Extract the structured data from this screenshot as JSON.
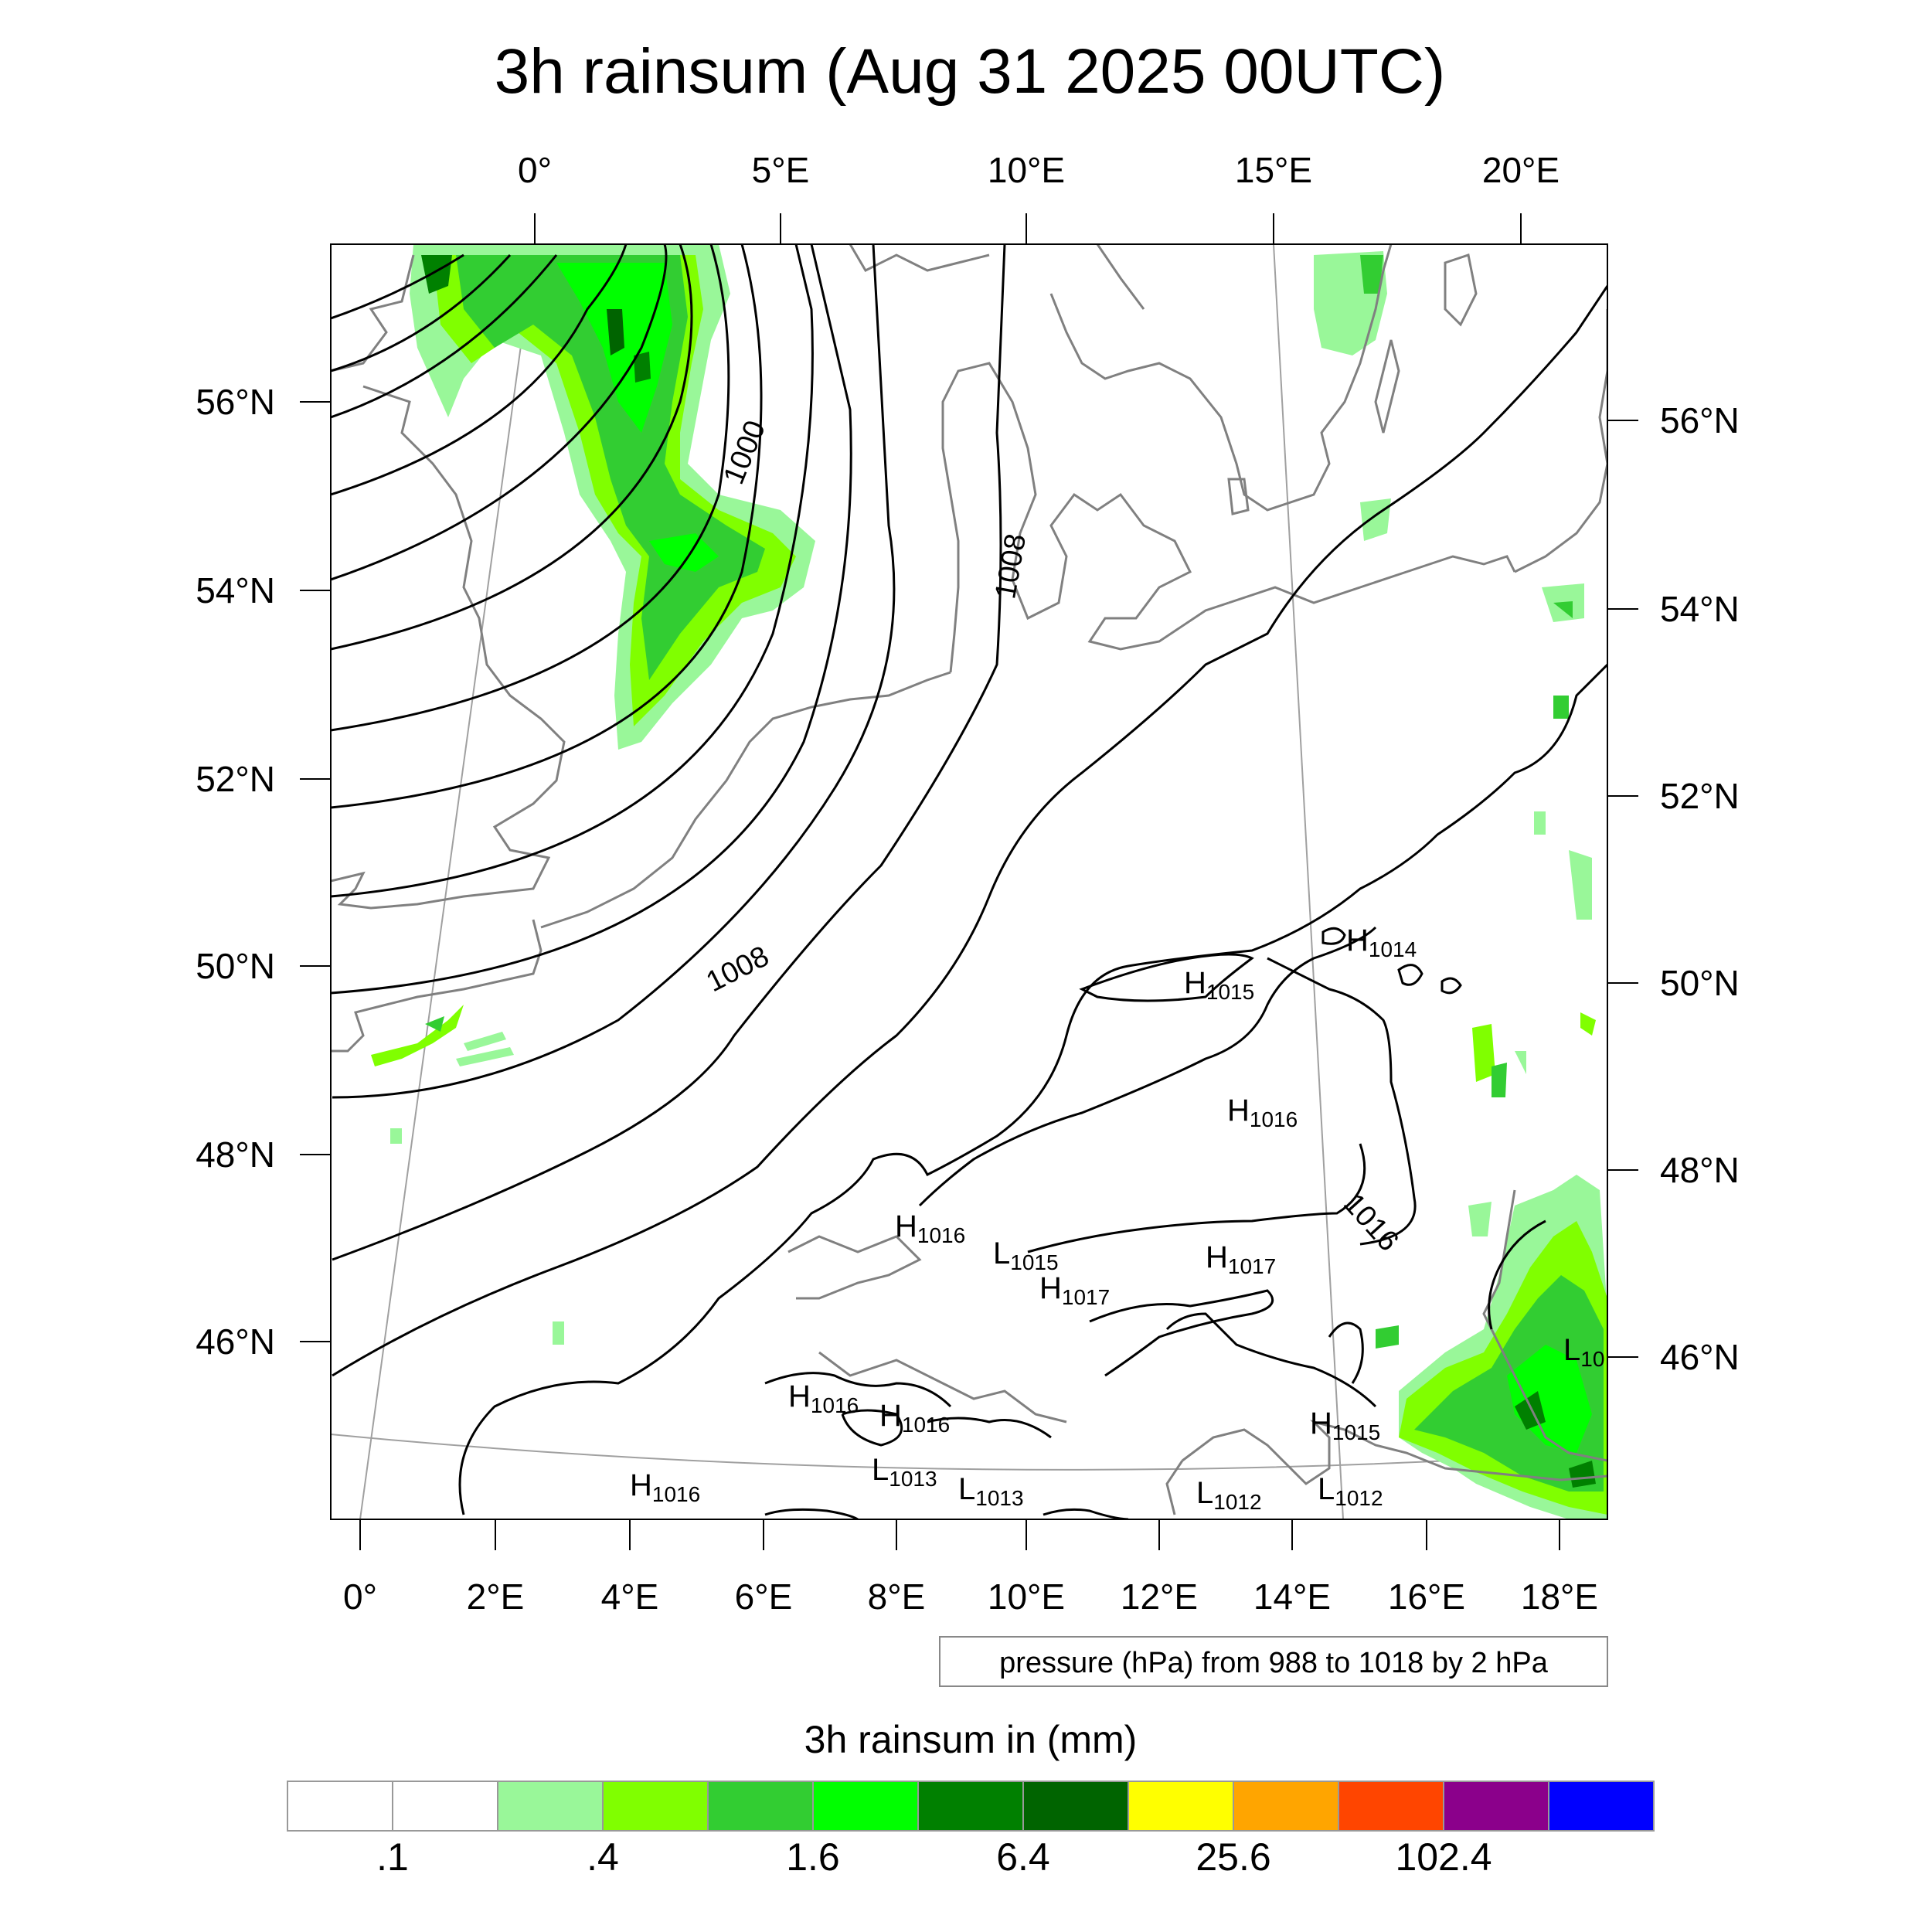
{
  "title": "3h rainsum (Aug 31 2025 00UTC)",
  "top_lon_labels": [
    "0°",
    "5°E",
    "10°E",
    "15°E",
    "20°E"
  ],
  "bottom_lon_labels": [
    "0°",
    "2°E",
    "4°E",
    "6°E",
    "8°E",
    "10°E",
    "12°E",
    "14°E",
    "16°E",
    "18°E"
  ],
  "left_lat_labels": [
    "56°N",
    "54°N",
    "52°N",
    "50°N",
    "48°N",
    "46°N"
  ],
  "right_lat_labels": [
    "56°N",
    "54°N",
    "52°N",
    "50°N",
    "48°N",
    "46°N"
  ],
  "isobar_labels": [
    "1000",
    "1008",
    "1008",
    "1016"
  ],
  "pressure_centers": [
    {
      "type": "H",
      "value": "1014"
    },
    {
      "type": "H",
      "value": "1015"
    },
    {
      "type": "H",
      "value": "1016"
    },
    {
      "type": "H",
      "value": "1016"
    },
    {
      "type": "L",
      "value": "1015"
    },
    {
      "type": "H",
      "value": "1017"
    },
    {
      "type": "H",
      "value": "1017"
    },
    {
      "type": "H",
      "value": "1016"
    },
    {
      "type": "H",
      "value": "1016"
    },
    {
      "type": "H",
      "value": "1015"
    },
    {
      "type": "L",
      "value": "10"
    },
    {
      "type": "L",
      "value": "1013"
    },
    {
      "type": "L",
      "value": "1013"
    },
    {
      "type": "L",
      "value": "1012"
    },
    {
      "type": "L",
      "value": "1012"
    },
    {
      "type": "H",
      "value": "1016"
    }
  ],
  "info_box": "pressure (hPa) from 988 to 1018 by 2 hPa",
  "colorbar": {
    "title": "3h rainsum in (mm)",
    "colors": [
      "#ffffff",
      "#ffffff",
      "#99f799",
      "#80ff00",
      "#32cd32",
      "#00ff00",
      "#008000",
      "#006400",
      "#ffff00",
      "#ffa500",
      "#ff4500",
      "#8b008b",
      "#0000ff"
    ],
    "labels": [
      ".1",
      ".4",
      "1.6",
      "6.4",
      "25.6",
      "102.4"
    ]
  },
  "colors": {
    "coast": "#808080",
    "isobar": "#000000",
    "grid": "#a0a0a0"
  }
}
